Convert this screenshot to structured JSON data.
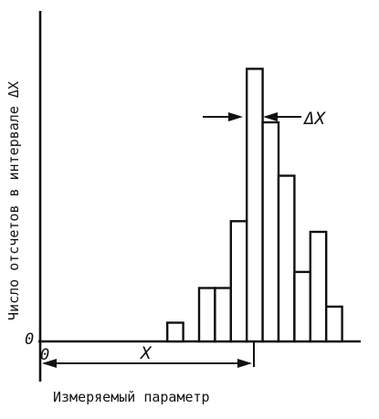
{
  "chart_data": {
    "type": "bar",
    "title": "",
    "xlabel": "Измеряемый параметр",
    "ylabel": "Число отсчетов в интервале ΔX",
    "bin_width": 1,
    "bin_starts": [
      8,
      10,
      11,
      12,
      13,
      14,
      15,
      16,
      17,
      18
    ],
    "values": [
      0.7,
      2.0,
      2.0,
      4.5,
      10.2,
      8.2,
      6.2,
      2.6,
      4.1,
      1.3
    ],
    "ylim": [
      0,
      11
    ],
    "annotations": {
      "origin": "0",
      "y_origin": "0",
      "x_marker": "X",
      "delta_marker": "ΔX"
    },
    "grid": false,
    "legend": "none"
  }
}
